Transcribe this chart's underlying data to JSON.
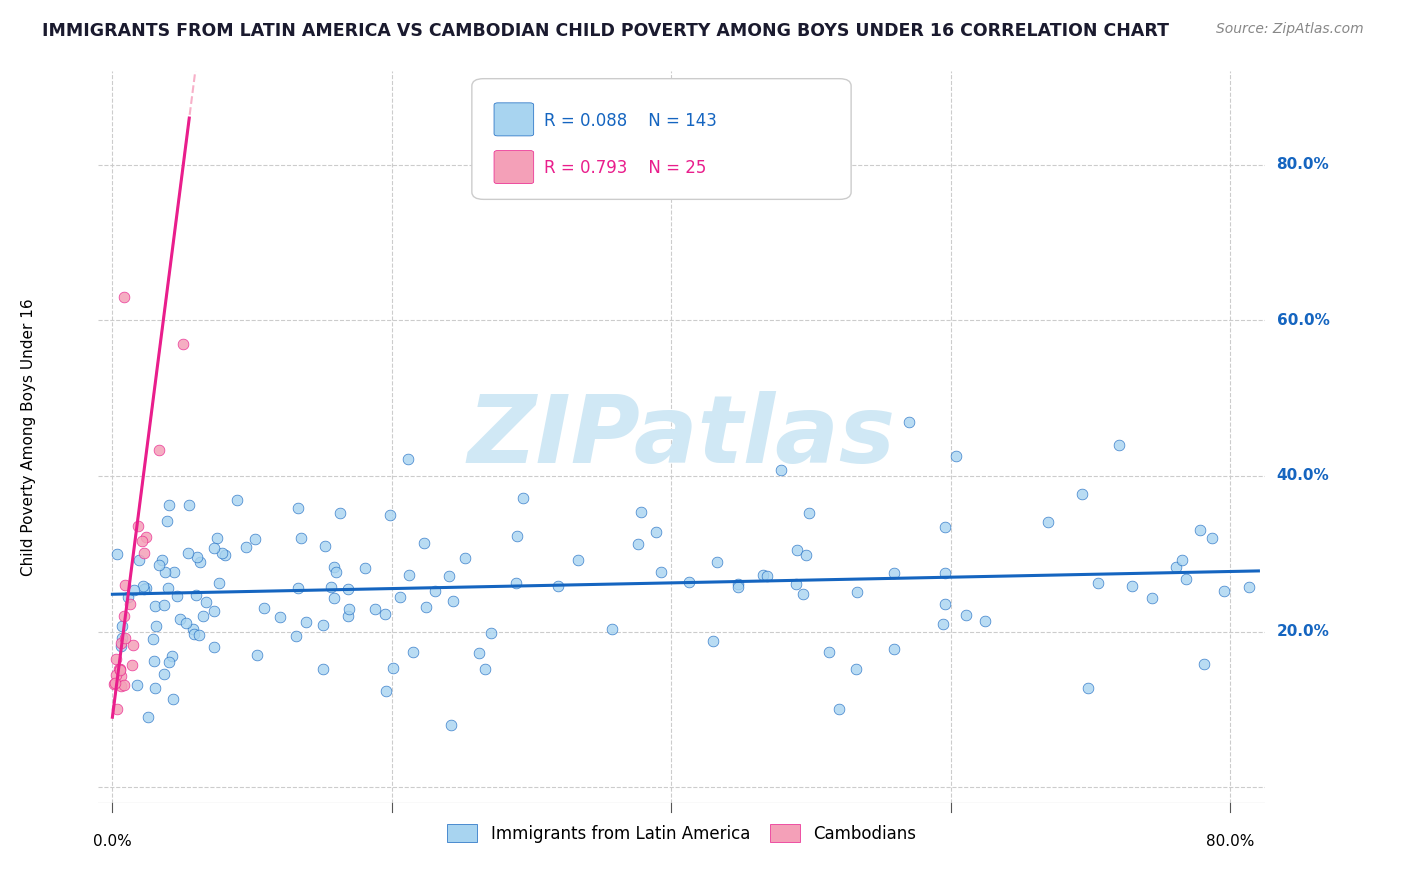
{
  "title": "IMMIGRANTS FROM LATIN AMERICA VS CAMBODIAN CHILD POVERTY AMONG BOYS UNDER 16 CORRELATION CHART",
  "source": "Source: ZipAtlas.com",
  "ylabel": "Child Poverty Among Boys Under 16",
  "xlim": [
    -0.01,
    0.825
  ],
  "ylim": [
    -0.02,
    0.92
  ],
  "xtick_positions": [
    0.0,
    0.2,
    0.4,
    0.6,
    0.8
  ],
  "ytick_positions": [
    0.0,
    0.2,
    0.4,
    0.6,
    0.8
  ],
  "xticklabels_ends": [
    "0.0%",
    "80.0%"
  ],
  "xticklabels_inner": [
    "",
    "",
    "",
    ""
  ],
  "yticklabels_right": [
    "20.0%",
    "40.0%",
    "60.0%",
    "80.0%"
  ],
  "grid_color": "#cccccc",
  "blue_color": "#a8d4f0",
  "pink_color": "#f4a0b8",
  "blue_line_color": "#1565c0",
  "pink_line_color": "#e91e8c",
  "pink_line_dashed_color": "#f48fb1",
  "R_blue": 0.088,
  "N_blue": 143,
  "R_pink": 0.793,
  "N_pink": 25,
  "blue_trend_y_at_x0": 0.248,
  "blue_trend_y_at_x80": 0.278,
  "pink_trend_y_at_x0": 0.09,
  "pink_trend_y_at_x4": 0.65,
  "background_color": "#ffffff",
  "title_fontsize": 12.5,
  "tick_label_fontsize": 11,
  "ylabel_fontsize": 11,
  "legend_fontsize": 12,
  "watermark_text": "ZIPatlas",
  "watermark_color": "#d0e8f5",
  "watermark_fontsize": 68
}
